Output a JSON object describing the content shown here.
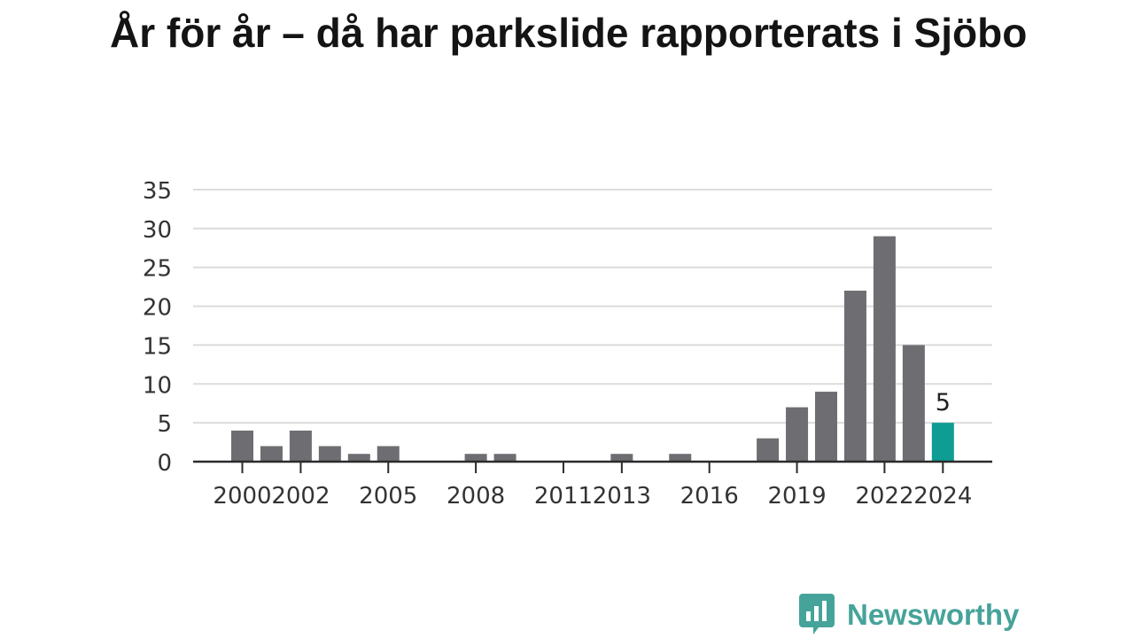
{
  "chart_data": {
    "type": "bar",
    "title": "År för år – då har parkslide rapporterats i Sjöbo",
    "xlabel": "",
    "ylabel": "",
    "categories": [
      2000,
      2001,
      2002,
      2003,
      2004,
      2005,
      2006,
      2007,
      2008,
      2009,
      2010,
      2011,
      2012,
      2013,
      2014,
      2015,
      2016,
      2017,
      2018,
      2019,
      2020,
      2021,
      2022,
      2023,
      2024
    ],
    "values": [
      4,
      2,
      4,
      2,
      1,
      2,
      0,
      0,
      1,
      1,
      0,
      0,
      0,
      1,
      0,
      1,
      0,
      0,
      3,
      7,
      9,
      22,
      29,
      15,
      5
    ],
    "xticks": [
      "2000",
      "2002",
      "2005",
      "2008",
      "2011",
      "2013",
      "2016",
      "2019",
      "2022",
      "2024"
    ],
    "yticks": [
      0,
      5,
      10,
      15,
      20,
      25,
      30,
      35
    ],
    "ylim": [
      0,
      35
    ],
    "grid": true,
    "highlight": {
      "category": 2024,
      "label": "5",
      "color": "#0e9c93"
    },
    "bar_color": "#6e6d72"
  },
  "brand": {
    "name": "Newsworthy",
    "color": "#46a39a"
  }
}
